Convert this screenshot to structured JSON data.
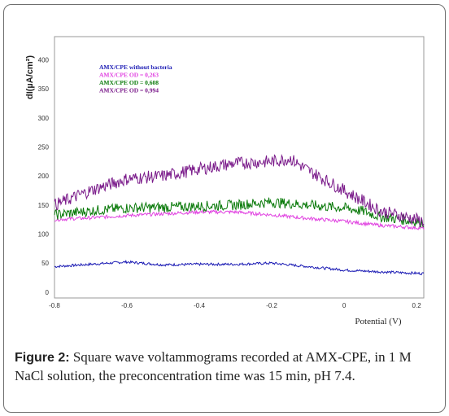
{
  "caption": {
    "label": "Figure 2:",
    "text": " Square wave voltammograms recorded at AMX-CPE, in 1 M NaCl solution, the preconcentration time was 15 min, pH 7.4."
  },
  "chart_data": {
    "type": "line",
    "title": "",
    "xlabel": "Potential (V)",
    "ylabel": "dI(µA/cm²)",
    "xlim": [
      -0.8,
      0.22
    ],
    "ylim": [
      -10,
      440
    ],
    "xticks": [
      "-0.8",
      "-0.6",
      "-0.4",
      "-0.2",
      "0",
      "0.2"
    ],
    "yticks": [
      "0",
      "50",
      "100",
      "150",
      "200",
      "250",
      "300",
      "350",
      "400"
    ],
    "legend_position": "top-left",
    "grid": false,
    "series": [
      {
        "name": "AMX/CPE without bacteria",
        "color": "#1a1ab4",
        "x": [
          -0.8,
          -0.7,
          -0.6,
          -0.5,
          -0.4,
          -0.3,
          -0.2,
          -0.1,
          0.0,
          0.1,
          0.22
        ],
        "y": [
          44,
          48,
          52,
          47,
          48,
          48,
          50,
          44,
          38,
          35,
          32
        ]
      },
      {
        "name": "AMX/CPE OD = 0,263",
        "color": "#e040e0",
        "x": [
          -0.8,
          -0.7,
          -0.6,
          -0.5,
          -0.4,
          -0.3,
          -0.2,
          -0.1,
          0.0,
          0.1,
          0.22
        ],
        "y": [
          125,
          128,
          132,
          135,
          138,
          138,
          133,
          127,
          122,
          115,
          110
        ]
      },
      {
        "name": "AMX/CPE OD = 0,608",
        "color": "#0a7a0a",
        "x": [
          -0.8,
          -0.7,
          -0.6,
          -0.5,
          -0.4,
          -0.3,
          -0.2,
          -0.1,
          0.0,
          0.05,
          0.1,
          0.22
        ],
        "y": [
          133,
          140,
          145,
          146,
          148,
          150,
          155,
          150,
          145,
          140,
          130,
          120
        ]
      },
      {
        "name": "AMX/CPE OD = 0,994",
        "color": "#7a1a8a",
        "x": [
          -0.8,
          -0.7,
          -0.6,
          -0.5,
          -0.4,
          -0.3,
          -0.2,
          -0.15,
          -0.1,
          0.0,
          0.1,
          0.22
        ],
        "y": [
          150,
          175,
          195,
          200,
          212,
          222,
          225,
          230,
          210,
          175,
          140,
          122
        ]
      }
    ]
  }
}
